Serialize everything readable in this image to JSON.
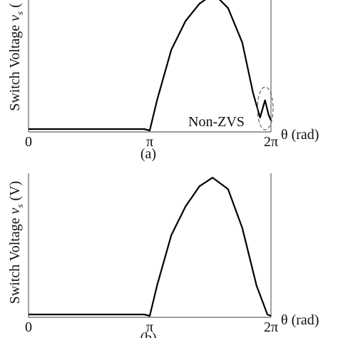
{
  "chart_data": [
    {
      "type": "line",
      "ylabel": [
        "Switch Voltage ",
        "v",
        "s",
        " ("
      ],
      "xlabel": "θ (rad)",
      "caption": "(a)",
      "annotation": "Non-ZVS",
      "xlim": [
        0,
        6.2832
      ],
      "xticks": [
        0,
        {
          "value": 3.1416,
          "label": "π"
        },
        {
          "value": 6.2832,
          "label": "2π"
        }
      ],
      "ylim": [
        0,
        1
      ],
      "series": [
        {
          "color": "#000000",
          "x": [
            0,
            0.5,
            1.0,
            1.5,
            2.0,
            2.5,
            3.0,
            3.1416,
            3.33,
            3.7,
            4.07,
            4.43,
            4.8,
            5.17,
            5.54,
            5.82,
            6.0,
            6.13,
            6.22,
            6.2832
          ],
          "values": [
            0.02,
            0.02,
            0.02,
            0.02,
            0.02,
            0.02,
            0.02,
            0.01,
            0.22,
            0.57,
            0.77,
            0.89,
            0.96,
            0.86,
            0.62,
            0.27,
            0.1,
            0.22,
            0.12,
            0.08
          ]
        }
      ]
    },
    {
      "type": "line",
      "ylabel": [
        "Switch Voltage ",
        "v",
        "s",
        " (V)"
      ],
      "xlabel": "θ (rad)",
      "caption": "(b)",
      "xlim": [
        0,
        6.2832
      ],
      "xticks": [
        0,
        {
          "value": 3.1416,
          "label": "π"
        },
        {
          "value": 6.2832,
          "label": "2π"
        }
      ],
      "ylim": [
        0,
        1
      ],
      "series": [
        {
          "color": "#000000",
          "x": [
            0,
            0.5,
            1.0,
            1.5,
            2.0,
            2.5,
            3.0,
            3.1416,
            3.33,
            3.7,
            4.07,
            4.43,
            4.77,
            5.17,
            5.54,
            5.91,
            6.19,
            6.2832
          ],
          "values": [
            0.02,
            0.02,
            0.02,
            0.02,
            0.02,
            0.02,
            0.02,
            0.01,
            0.22,
            0.57,
            0.77,
            0.91,
            0.97,
            0.89,
            0.62,
            0.22,
            0.02,
            0.01
          ]
        }
      ]
    }
  ]
}
